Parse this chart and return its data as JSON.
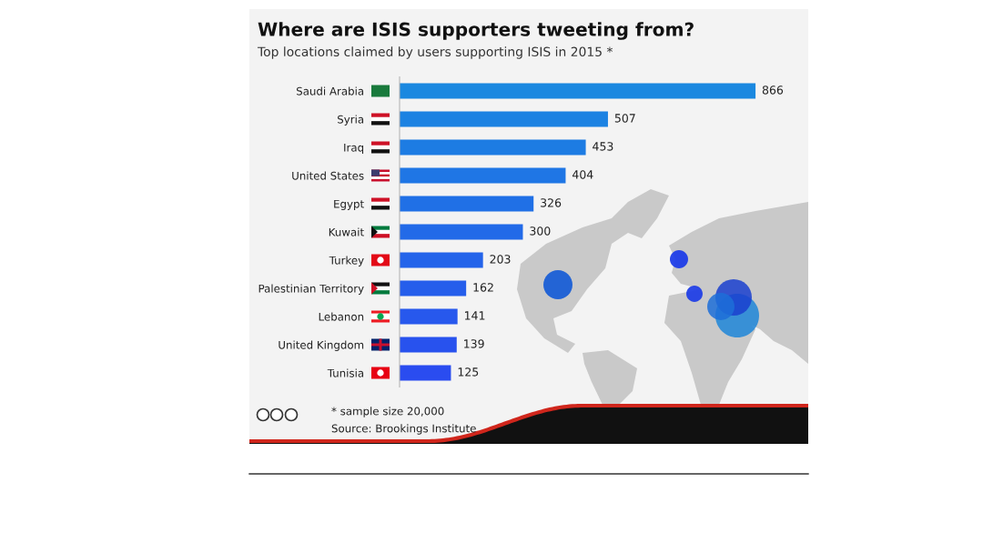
{
  "chart_data": {
    "type": "bar",
    "orientation": "horizontal",
    "title": "Where are ISIS supporters tweeting from?",
    "subtitle": "Top locations claimed by users supporting ISIS in 2015 *",
    "categories": [
      "Saudi Arabia",
      "Syria",
      "Iraq",
      "United States",
      "Egypt",
      "Kuwait",
      "Turkey",
      "Palestinian Territory",
      "Lebanon",
      "United Kingdom",
      "Tunisia"
    ],
    "values": [
      866,
      507,
      453,
      404,
      326,
      300,
      203,
      162,
      141,
      139,
      125
    ],
    "colors": [
      "#1a88e0",
      "#1c82e2",
      "#1d7ce3",
      "#1f76e5",
      "#2070e6",
      "#226ae8",
      "#2464ea",
      "#255eeb",
      "#2758ed",
      "#2852ee",
      "#2a4cf0"
    ],
    "data_labels": true,
    "tick_labels": "y",
    "annotations": [
      "* sample size 20,000",
      "Source: Brookings Institute"
    ]
  }
}
